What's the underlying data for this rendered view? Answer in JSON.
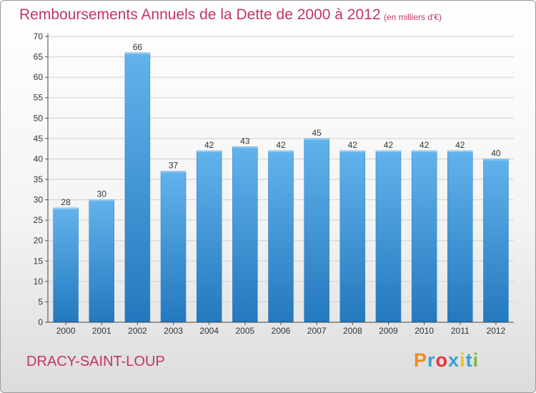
{
  "header": {
    "title": "Remboursements Annuels de la Dette de 2000 à 2012",
    "unit": "(en milliers d'€)"
  },
  "footer": {
    "commune": "DRACY-SAINT-LOUP",
    "logo_text": "Proxiti",
    "logo_letter_colors": [
      "#f28c1e",
      "#3aa0d8",
      "#e3352e",
      "#3aa0d8",
      "#f2c21e",
      "#3aa0d8",
      "#7cb542"
    ]
  },
  "chart_data": {
    "type": "bar",
    "title": "Remboursements Annuels de la Dette de 2000 à 2012",
    "subtitle": "(en milliers d'€)",
    "xlabel": "",
    "ylabel": "",
    "categories": [
      "2000",
      "2001",
      "2002",
      "2003",
      "2004",
      "2005",
      "2006",
      "2007",
      "2008",
      "2009",
      "2010",
      "2011",
      "2012"
    ],
    "values": [
      28,
      30,
      66,
      37,
      42,
      43,
      42,
      45,
      42,
      42,
      42,
      42,
      40
    ],
    "ylim": [
      0,
      70
    ],
    "yticks": [
      0,
      5,
      10,
      15,
      20,
      25,
      30,
      35,
      40,
      45,
      50,
      55,
      60,
      65,
      70
    ],
    "grid": true,
    "legend": "none",
    "colors": {
      "bar": "#3d8fd6",
      "bar_light": "#62b3ec",
      "bar_dark": "#2478bd",
      "grid": "#cfcfcf",
      "title": "#c2346a"
    }
  }
}
